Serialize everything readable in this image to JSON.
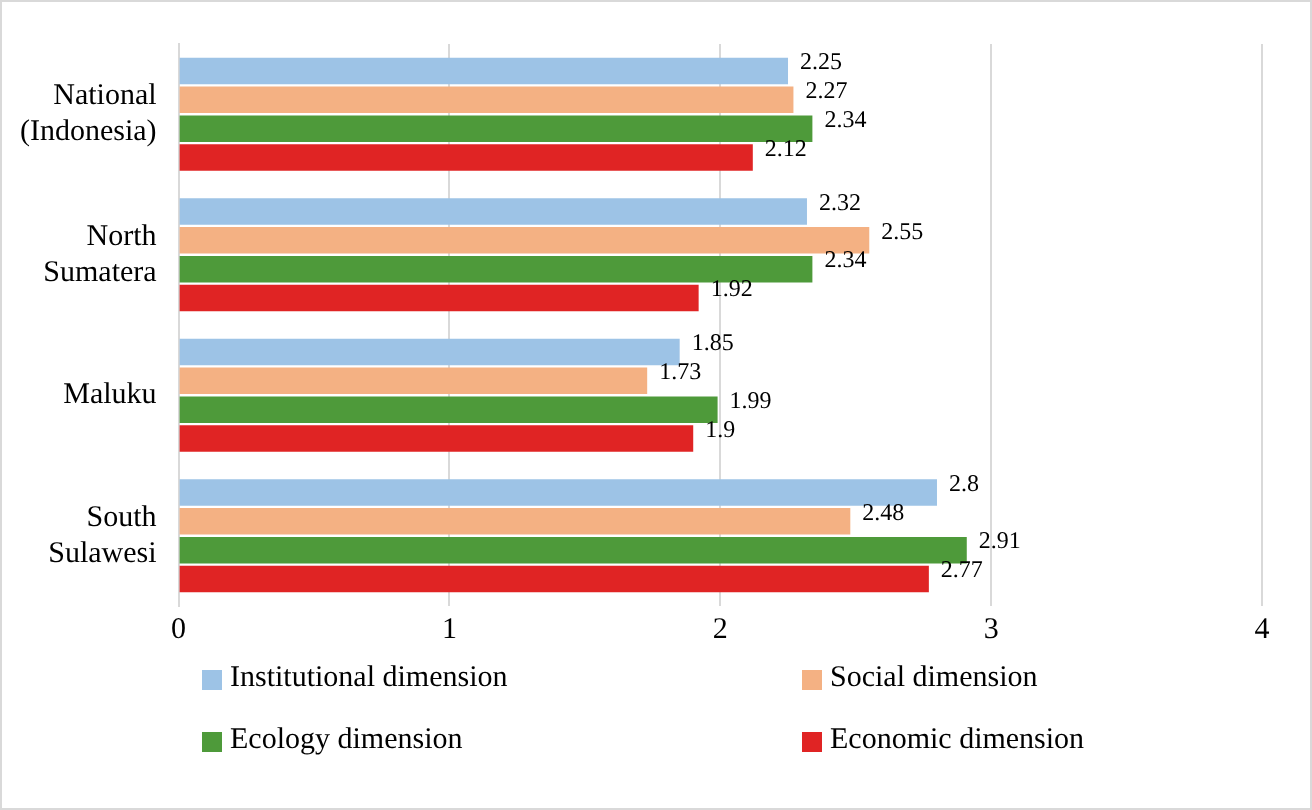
{
  "chart_data": {
    "type": "bar",
    "orientation": "horizontal",
    "categories": [
      "National (Indonesia)",
      "North Sumatera",
      "Maluku",
      "South Sulawesi"
    ],
    "series": [
      {
        "name": "Institutional dimension",
        "color": "#9dc3e6",
        "values": [
          2.25,
          2.32,
          1.85,
          2.8
        ]
      },
      {
        "name": "Social dimension",
        "color": "#f4b183",
        "values": [
          2.27,
          2.55,
          1.73,
          2.48
        ]
      },
      {
        "name": "Ecology dimension",
        "color": "#4e9a3a",
        "values": [
          2.34,
          2.34,
          1.99,
          2.91
        ]
      },
      {
        "name": "Economic dimension",
        "color": "#e02424",
        "values": [
          2.12,
          1.92,
          1.9,
          2.77
        ]
      }
    ],
    "xlim": [
      0,
      4
    ],
    "xticks": [
      0,
      1,
      2,
      3,
      4
    ],
    "grid": "x",
    "legend": "bottom",
    "data_labels": true
  }
}
